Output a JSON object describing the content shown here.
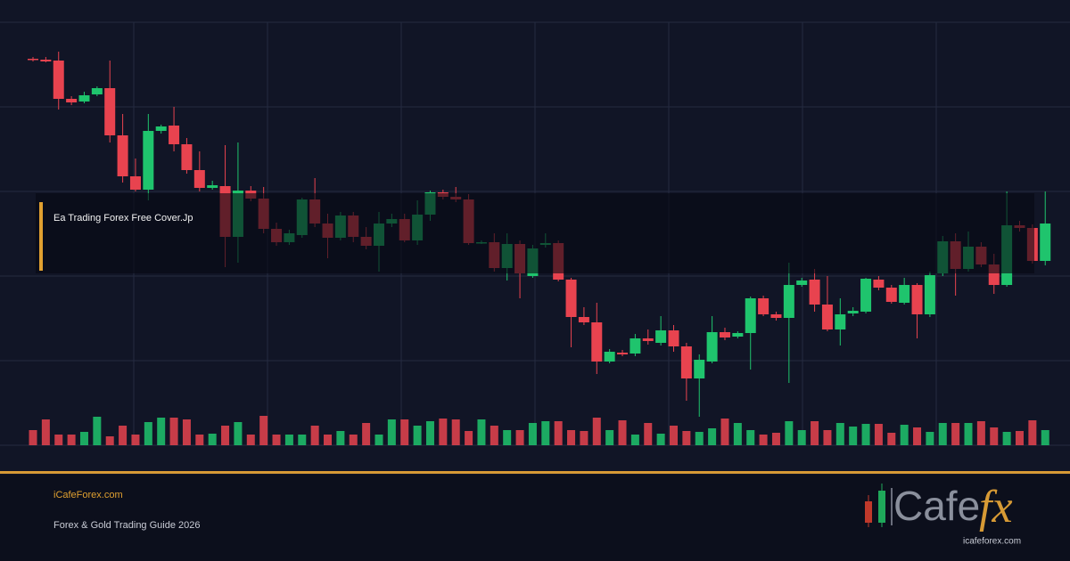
{
  "chart_data": {
    "type": "candlestick",
    "up_color": "#1fc46d",
    "down_color": "#e8434f",
    "ylim": [
      0,
      475
    ],
    "open": [
      434,
      433,
      432,
      389,
      386,
      394,
      401,
      348,
      302,
      287,
      353,
      359,
      338,
      309,
      289,
      291,
      234,
      286,
      277,
      243,
      228,
      236,
      276,
      249,
      233,
      258,
      234,
      224,
      249,
      254,
      230,
      259,
      284,
      279,
      276,
      227,
      228,
      199,
      226,
      190,
      225,
      227,
      186,
      144,
      138,
      94,
      104,
      103,
      120,
      115,
      129,
      111,
      75,
      94,
      127,
      122,
      126,
      165,
      147,
      143,
      180,
      186,
      158,
      130,
      148,
      150,
      186,
      177,
      160,
      180,
      147,
      193,
      229,
      198,
      223,
      203,
      180,
      247,
      244,
      207
    ],
    "close": [
      433,
      431,
      389,
      385,
      393,
      401,
      348,
      302,
      287,
      353,
      358,
      338,
      309,
      289,
      292,
      234,
      286,
      277,
      243,
      228,
      238,
      276,
      249,
      233,
      258,
      234,
      224,
      249,
      254,
      230,
      259,
      284,
      279,
      276,
      227,
      228,
      199,
      226,
      193,
      221,
      227,
      186,
      144,
      138,
      94,
      105,
      102,
      120,
      117,
      129,
      111,
      75,
      96,
      127,
      121,
      126,
      165,
      147,
      143,
      180,
      185,
      158,
      130,
      147,
      151,
      187,
      177,
      161,
      180,
      147,
      191,
      229,
      198,
      223,
      203,
      180,
      247,
      244,
      207,
      249
    ],
    "high": [
      436,
      436,
      442,
      392,
      397,
      403,
      432,
      372,
      322,
      372,
      360,
      380,
      345,
      330,
      297,
      337,
      340,
      291,
      290,
      250,
      242,
      278,
      300,
      260,
      262,
      262,
      245,
      262,
      260,
      260,
      275,
      286,
      287,
      290,
      282,
      230,
      238,
      238,
      230,
      225,
      238,
      230,
      188,
      155,
      160,
      108,
      107,
      125,
      130,
      145,
      135,
      115,
      102,
      145,
      132,
      128,
      167,
      168,
      150,
      205,
      188,
      198,
      190,
      165,
      155,
      188,
      190,
      180,
      188,
      182,
      195,
      235,
      238,
      240,
      228,
      215,
      285,
      252,
      248,
      285
    ],
    "low": [
      431,
      430,
      377,
      382,
      384,
      392,
      340,
      295,
      285,
      275,
      350,
      330,
      305,
      285,
      287,
      200,
      205,
      274,
      238,
      224,
      225,
      233,
      245,
      210,
      230,
      228,
      220,
      195,
      245,
      228,
      225,
      252,
      276,
      273,
      225,
      226,
      195,
      185,
      165,
      188,
      222,
      184,
      110,
      135,
      80,
      92,
      100,
      100,
      113,
      112,
      105,
      50,
      32,
      92,
      118,
      120,
      85,
      145,
      140,
      70,
      178,
      150,
      128,
      112,
      145,
      148,
      174,
      159,
      158,
      120,
      144,
      190,
      168,
      195,
      200,
      170,
      178,
      240,
      204,
      202
    ],
    "volume": [
      17,
      29,
      12,
      12,
      15,
      32,
      10,
      22,
      12,
      26,
      31,
      31,
      29,
      12,
      13,
      22,
      26,
      12,
      33,
      12,
      12,
      12,
      22,
      12,
      16,
      12,
      25,
      12,
      29,
      29,
      22,
      27,
      30,
      29,
      16,
      29,
      22,
      17,
      17,
      25,
      27,
      27,
      17,
      16,
      31,
      17,
      28,
      12,
      25,
      13,
      22,
      16,
      15,
      19,
      30,
      25,
      17,
      12,
      14,
      27,
      17,
      27,
      17,
      25,
      21,
      24,
      24,
      14,
      23,
      20,
      15,
      25,
      25,
      25,
      27,
      20,
      15,
      16,
      28,
      17
    ],
    "volume_lim": [
      0,
      40
    ]
  },
  "banner": {
    "title": "Ea Trading Forex Free Cover.Jp",
    "site": "iCafeForex.com",
    "subtitle": "Forex & Gold Trading Guide 2026",
    "logo": {
      "word": "Cafe",
      "mark": "fx",
      "url": "icafeforex.com"
    }
  }
}
